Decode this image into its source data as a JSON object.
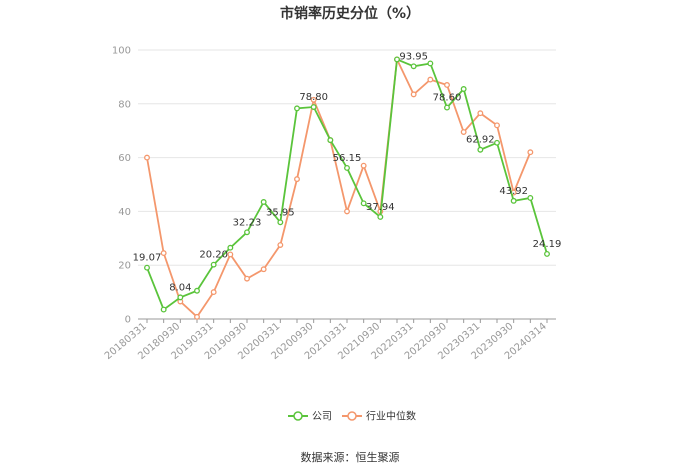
{
  "chart_data": {
    "type": "line",
    "title": "市销率历史分位（%）",
    "ylim": [
      0,
      100
    ],
    "yticks": [
      0,
      20,
      40,
      60,
      80,
      100
    ],
    "grid": true,
    "legend_position": "bottom",
    "x": [
      "20180331",
      "20180630",
      "20180930",
      "20181231",
      "20190331",
      "20190630",
      "20190930",
      "20191231",
      "20200331",
      "20200630",
      "20200930",
      "20201231",
      "20210331",
      "20210630",
      "20210930",
      "20211231",
      "20220331",
      "20220630",
      "20220930",
      "20221231",
      "20230331",
      "20230630",
      "20230930",
      "20231231",
      "20240314"
    ],
    "xtick_labels": [
      "20180331",
      "20180930",
      "20190331",
      "20190930",
      "20200331",
      "20200930",
      "20210331",
      "20210930",
      "20220331",
      "20220930",
      "20230331",
      "20230930",
      "20240314"
    ],
    "xtick_indices": [
      0,
      2,
      4,
      6,
      8,
      10,
      12,
      14,
      16,
      18,
      20,
      22,
      24
    ],
    "series": [
      {
        "name": "公司",
        "color": "#5ac43b",
        "values": [
          19.07,
          3.5,
          8.04,
          10.5,
          20.2,
          26.5,
          32.23,
          43.5,
          35.95,
          78.3,
          78.8,
          66.5,
          56.15,
          43.0,
          37.94,
          96.5,
          93.95,
          95.0,
          78.6,
          85.5,
          62.92,
          65.5,
          43.92,
          45.0,
          24.19
        ]
      },
      {
        "name": "行业中位数",
        "color": "#f4976c",
        "values": [
          60.0,
          24.5,
          6.5,
          0.8,
          10.0,
          24.0,
          15.0,
          18.5,
          27.5,
          52.0,
          81.5,
          66.5,
          40.0,
          57.0,
          40.0,
          96.5,
          83.5,
          89.0,
          87.0,
          69.5,
          76.5,
          72.0,
          47.0,
          62.0,
          null
        ]
      }
    ],
    "data_labels": [
      {
        "series": 0,
        "index": 0,
        "text": "19.07"
      },
      {
        "series": 0,
        "index": 2,
        "text": "8.04"
      },
      {
        "series": 0,
        "index": 4,
        "text": "20.20"
      },
      {
        "series": 0,
        "index": 6,
        "text": "32.23"
      },
      {
        "series": 0,
        "index": 8,
        "text": "35.95"
      },
      {
        "series": 0,
        "index": 10,
        "text": "78.80"
      },
      {
        "series": 0,
        "index": 12,
        "text": "56.15"
      },
      {
        "series": 0,
        "index": 14,
        "text": "37.94"
      },
      {
        "series": 0,
        "index": 16,
        "text": "93.95"
      },
      {
        "series": 0,
        "index": 18,
        "text": "78.60"
      },
      {
        "series": 0,
        "index": 20,
        "text": "62.92"
      },
      {
        "series": 0,
        "index": 22,
        "text": "43.92"
      },
      {
        "series": 0,
        "index": 24,
        "text": "24.19"
      }
    ]
  },
  "source": "数据来源：恒生聚源"
}
